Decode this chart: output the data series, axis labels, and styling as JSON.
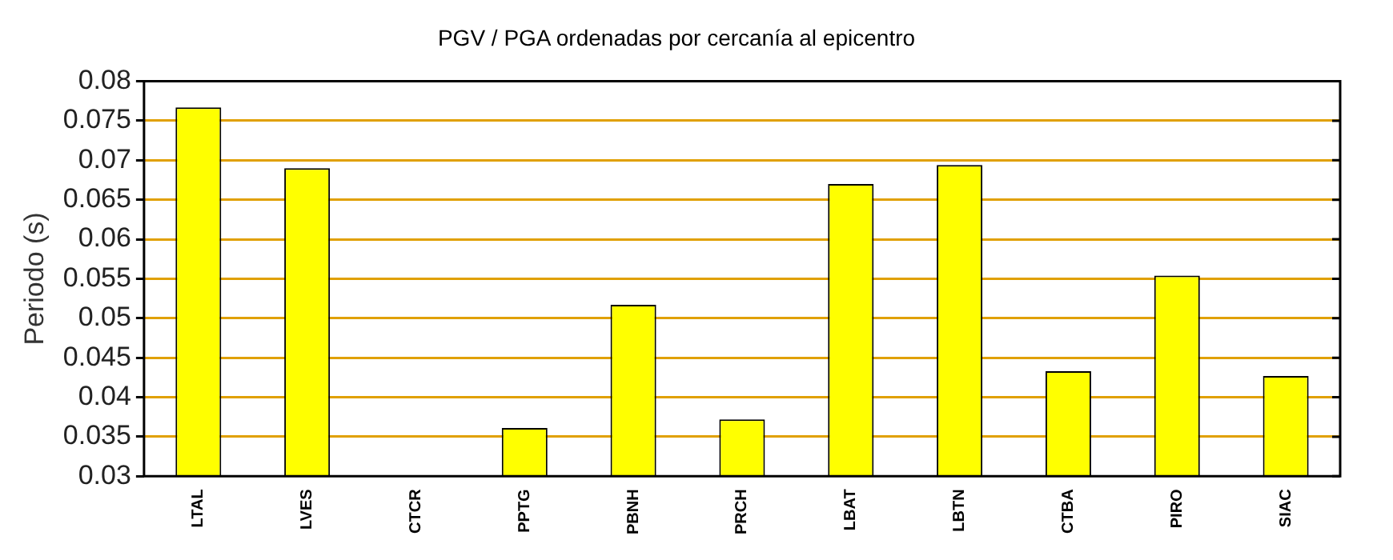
{
  "chart_data": {
    "type": "bar",
    "title": "PGV / PGA ordenadas por cercanía al epicentro",
    "ylabel": "Periodo (s)",
    "categories": [
      "LTAL",
      "LVES",
      "CTCR",
      "PPTG",
      "PBNH",
      "PRCH",
      "LBAT",
      "LBTN",
      "CTBA",
      "PIRO",
      "SIAC"
    ],
    "values": [
      0.0767,
      0.069,
      null,
      0.0361,
      0.0517,
      0.0372,
      0.067,
      0.0694,
      0.0433,
      0.0554,
      0.0427
    ],
    "color": "#ffff00",
    "ylim": [
      0.03,
      0.08
    ],
    "yticks": [
      0.03,
      0.035,
      0.04,
      0.045,
      0.05,
      0.055,
      0.06,
      0.065,
      0.07,
      0.075,
      0.08
    ],
    "grid": "y",
    "legend": false
  }
}
